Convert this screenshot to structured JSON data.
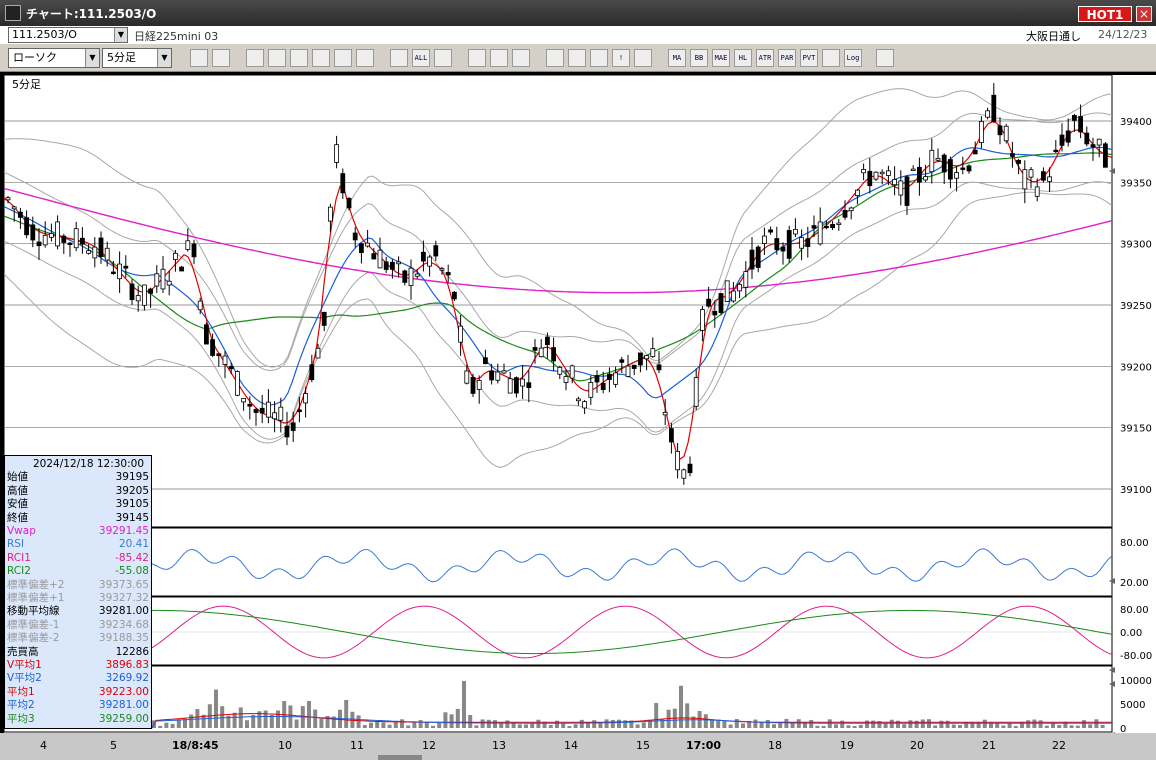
{
  "window": {
    "title": "チャート:111.2503/O",
    "hot_label": "HOT1",
    "close_glyph": "×"
  },
  "infobar": {
    "symbol": "111.2503/O",
    "instrument": "日経225mini 03",
    "exchange": "大阪日通し",
    "date": "24/12/23"
  },
  "toolbar": {
    "chart_type": "ローソク",
    "interval": "5分足",
    "buttons": [
      "",
      "",
      "",
      "",
      "",
      "",
      "",
      "",
      "",
      "ALL",
      "",
      "",
      "",
      "",
      "",
      "",
      "",
      "!",
      "",
      "MA",
      "BB",
      "MAE",
      "HL",
      "ATR",
      "PAR",
      "PVT",
      "",
      "Log",
      ""
    ]
  },
  "chart": {
    "interval_label": "5分足",
    "price_ticks": [
      "39400",
      "39350",
      "39300",
      "39250",
      "39200",
      "39150",
      "39100"
    ],
    "rsi_ticks": [
      "80.00",
      "20.00"
    ],
    "rci_ticks": [
      "80.00",
      "0.00",
      "-80.00"
    ],
    "vol_ticks": [
      "10000",
      "5000",
      "0"
    ],
    "colors": {
      "candle": "#000000",
      "ma1": "#e00000",
      "ma2": "#1c5fd8",
      "ma3": "#1a8a1a",
      "vwap": "#e020c8",
      "band": "#a8a8a8",
      "rsi": "#3a7ad8",
      "rci1": "#e0208a",
      "rci2": "#1a8a1a",
      "volume": "#888888"
    }
  },
  "x_axis": [
    "4",
    "5",
    "18/8:45",
    "10",
    "11",
    "12",
    "13",
    "14",
    "15",
    "17:00",
    "18",
    "19",
    "20",
    "21",
    "22"
  ],
  "info": [
    {
      "k": "2024/12/18  12:30:00",
      "v": "",
      "c": "#000"
    },
    {
      "k": "始値",
      "v": "39195",
      "c": "#000"
    },
    {
      "k": "高値",
      "v": "39205",
      "c": "#000"
    },
    {
      "k": "安値",
      "v": "39105",
      "c": "#000"
    },
    {
      "k": "終値",
      "v": "39145",
      "c": "#000"
    },
    {
      "k": "Vwap",
      "v": "39291.45",
      "c": "#e020c8"
    },
    {
      "k": "RSI",
      "v": "20.41",
      "c": "#3a7ad8"
    },
    {
      "k": "RCI1",
      "v": "-85.42",
      "c": "#e0208a"
    },
    {
      "k": "RCI2",
      "v": "-55.08",
      "c": "#1a8a1a"
    },
    {
      "k": "標準偏差+2",
      "v": "39373.65",
      "c": "#999"
    },
    {
      "k": "標準偏差+1",
      "v": "39327.32",
      "c": "#999"
    },
    {
      "k": "移動平均線",
      "v": "39281.00",
      "c": "#000"
    },
    {
      "k": "標準偏差-1",
      "v": "39234.68",
      "c": "#999"
    },
    {
      "k": "標準偏差-2",
      "v": "39188.35",
      "c": "#999"
    },
    {
      "k": "売買高",
      "v": "12286",
      "c": "#000"
    },
    {
      "k": "V平均1",
      "v": "3896.83",
      "c": "#e00000"
    },
    {
      "k": "V平均2",
      "v": "3269.92",
      "c": "#1c5fd8"
    },
    {
      "k": "平均1",
      "v": "39223.00",
      "c": "#e00000"
    },
    {
      "k": "平均2",
      "v": "39281.00",
      "c": "#1c5fd8"
    },
    {
      "k": "平均3",
      "v": "39259.00",
      "c": "#1a8a1a"
    }
  ]
}
